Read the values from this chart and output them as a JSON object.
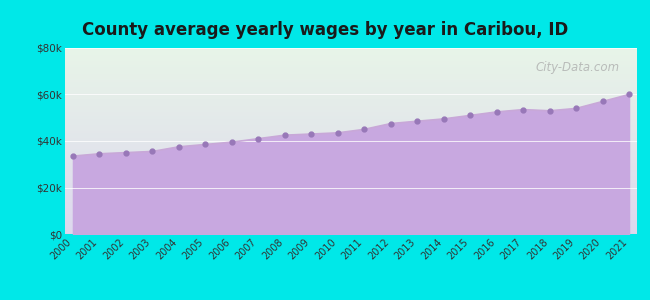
{
  "title": "County average yearly wages by year in Caribou, ID",
  "years": [
    2000,
    2001,
    2002,
    2003,
    2004,
    2005,
    2006,
    2007,
    2008,
    2009,
    2010,
    2011,
    2012,
    2013,
    2014,
    2015,
    2016,
    2017,
    2018,
    2019,
    2020,
    2021
  ],
  "wages": [
    33500,
    34500,
    35000,
    35500,
    37500,
    38500,
    39500,
    41000,
    42500,
    43000,
    43500,
    45000,
    47500,
    48500,
    49500,
    51000,
    52500,
    53500,
    53000,
    54000,
    57000,
    60000
  ],
  "line_color": "#c8a8d8",
  "fill_color": "#c8a8e0",
  "fill_alpha": 1.0,
  "marker_color": "#9878b8",
  "bg_outer": "#00e8e8",
  "bg_grad_top": "#e8f5e8",
  "bg_grad_bottom": "#ddd8ee",
  "ylim": [
    0,
    80000
  ],
  "yticks": [
    0,
    20000,
    40000,
    60000,
    80000
  ],
  "ytick_labels": [
    "$0",
    "$20k",
    "$40k",
    "$60k",
    "$80k"
  ],
  "title_fontsize": 12,
  "watermark": "City-Data.com"
}
